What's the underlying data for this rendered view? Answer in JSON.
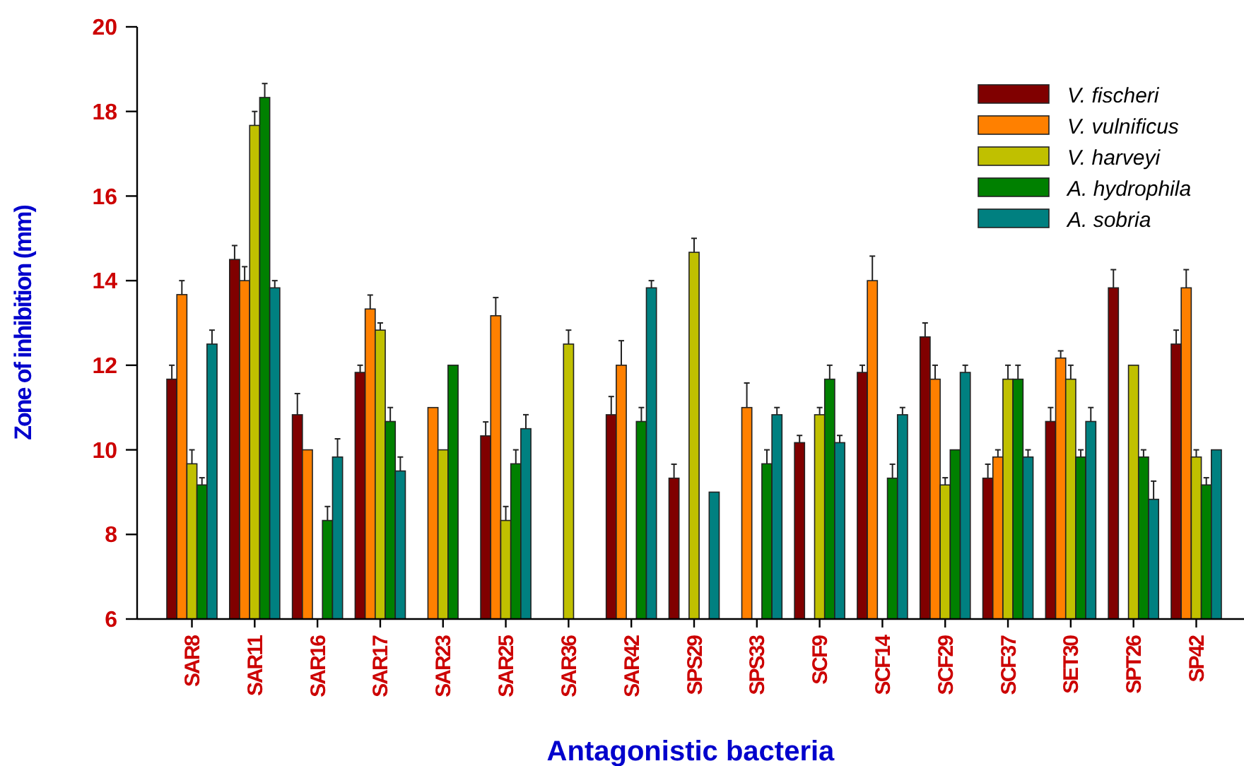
{
  "chart_data": {
    "type": "bar",
    "xlabel": "Antagonistic bacteria",
    "ylabel": "Zone of inhibition (mm)",
    "categories": [
      "SAR8",
      "SAR11",
      "SAR16",
      "SAR17",
      "SAR23",
      "SAR25",
      "SAR36",
      "SAR42",
      "SPS29",
      "SPS33",
      "SCF9",
      "SCF14",
      "SCF29",
      "SCF37",
      "SET30",
      "SPT26",
      "SP42"
    ],
    "series": [
      {
        "name": "V. fischeri",
        "color": "#800000",
        "values": [
          11.67,
          14.5,
          10.83,
          11.83,
          null,
          10.33,
          null,
          10.83,
          9.33,
          null,
          10.17,
          11.83,
          12.67,
          9.33,
          10.67,
          13.83,
          12.5
        ],
        "errors": [
          0.33,
          0.33,
          0.5,
          0.17,
          null,
          0.33,
          null,
          0.43,
          0.33,
          null,
          0.17,
          0.17,
          0.33,
          0.33,
          0.33,
          0.43,
          0.33
        ]
      },
      {
        "name": "V. vulnificus",
        "color": "#ff8000",
        "values": [
          13.67,
          14,
          10,
          13.33,
          11,
          13.17,
          null,
          12,
          null,
          11,
          null,
          14,
          11.67,
          9.83,
          12.17,
          null,
          13.83
        ],
        "errors": [
          0.33,
          0.33,
          null,
          0.33,
          null,
          0.43,
          null,
          0.58,
          null,
          0.58,
          null,
          0.58,
          0.33,
          0.17,
          0.17,
          null,
          0.43
        ]
      },
      {
        "name": "V. harveyi",
        "color": "#c0c000",
        "values": [
          9.67,
          17.67,
          null,
          12.83,
          10,
          8.33,
          12.5,
          null,
          14.67,
          null,
          10.83,
          null,
          9.17,
          11.67,
          11.67,
          12,
          9.83
        ],
        "errors": [
          0.33,
          0.33,
          null,
          0.17,
          null,
          0.33,
          0.33,
          null,
          0.33,
          null,
          0.17,
          null,
          0.17,
          0.33,
          0.33,
          null,
          0.17
        ]
      },
      {
        "name": "A. hydrophila",
        "color": "#008000",
        "values": [
          9.17,
          18.33,
          8.33,
          10.67,
          12,
          9.67,
          null,
          10.67,
          null,
          9.67,
          11.67,
          9.33,
          10,
          11.67,
          9.83,
          9.83,
          9.17
        ],
        "errors": [
          0.17,
          0.33,
          0.33,
          0.33,
          null,
          0.33,
          null,
          0.33,
          null,
          0.33,
          0.33,
          0.33,
          null,
          0.33,
          0.17,
          0.17,
          0.17
        ]
      },
      {
        "name": "A. sobria",
        "color": "#008080",
        "values": [
          12.5,
          13.83,
          9.83,
          9.5,
          null,
          10.5,
          null,
          13.83,
          9,
          10.83,
          10.17,
          10.83,
          11.83,
          9.83,
          10.67,
          8.83,
          10
        ],
        "errors": [
          0.33,
          0.17,
          0.43,
          0.33,
          null,
          0.33,
          null,
          0.17,
          null,
          0.17,
          0.17,
          0.17,
          0.17,
          0.17,
          0.33,
          0.43,
          null
        ]
      }
    ],
    "ylim": [
      6,
      20
    ],
    "yticks": [
      6,
      8,
      10,
      12,
      14,
      16,
      18,
      20
    ],
    "grid": false,
    "legend": "top right"
  }
}
